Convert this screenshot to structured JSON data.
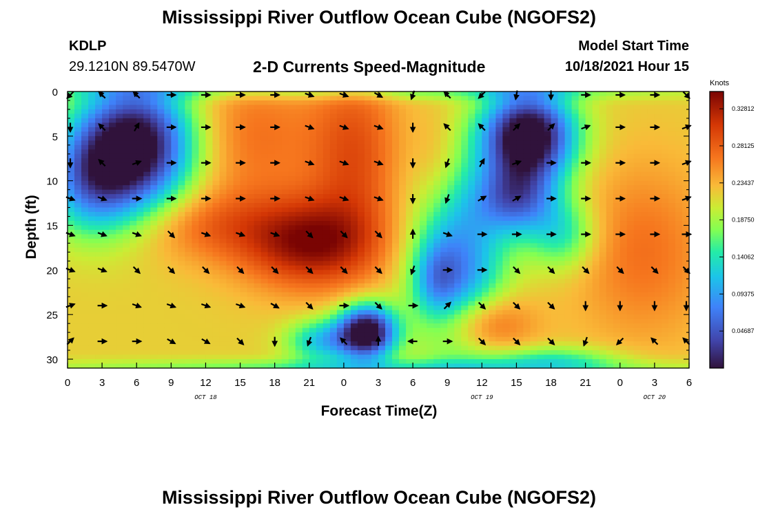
{
  "header": {
    "title": "Mississippi River Outflow Ocean Cube (NGOFS2)",
    "station": "KDLP",
    "coords": "29.1210N  89.5470W",
    "subtitle": "2-D Currents Speed-Magnitude",
    "model_start_label": "Model Start Time",
    "model_start_value": "10/18/2021 Hour 15"
  },
  "footer": {
    "title": "Mississippi River Outflow Ocean Cube (NGOFS2)"
  },
  "chart_data": {
    "type": "heatmap",
    "title": "2-D Currents Speed-Magnitude",
    "xlabel": "Forecast Time(Z)",
    "ylabel": "Depth (ft)",
    "xlim": [
      0,
      54
    ],
    "ylim": [
      0,
      31
    ],
    "x_ticks": [
      0,
      3,
      6,
      9,
      12,
      15,
      18,
      21,
      24,
      27,
      30,
      33,
      36,
      39,
      42,
      45,
      48,
      51,
      54
    ],
    "x_tick_labels": [
      "0",
      "3",
      "6",
      "9",
      "12",
      "15",
      "18",
      "21",
      "0",
      "3",
      "6",
      "9",
      "12",
      "15",
      "18",
      "21",
      "0",
      "3",
      "6"
    ],
    "y_ticks": [
      0,
      5,
      10,
      15,
      20,
      25,
      30
    ],
    "y_tick_labels": [
      "0",
      "5",
      "10",
      "15",
      "20",
      "25",
      "30"
    ],
    "date_labels": [
      {
        "x": 12,
        "text": "OCT 18"
      },
      {
        "x": 36,
        "text": "OCT 19"
      },
      {
        "x": 51,
        "text": "OCT 20"
      }
    ],
    "colorbar": {
      "label": "Knots",
      "min": 0.0,
      "max": 0.35,
      "ticks": [
        0.04687,
        0.09375,
        0.14062,
        0.1875,
        0.23437,
        0.28125,
        0.32812
      ],
      "tick_labels": [
        "0.04687",
        "0.09375",
        "0.14062",
        "0.18750",
        "0.23437",
        "0.28125",
        "0.32812"
      ]
    },
    "speed_field_features": [
      {
        "x": 6,
        "y": 6,
        "sx": 5,
        "sy": 7,
        "v": -0.24
      },
      {
        "x": 2,
        "y": 10,
        "sx": 4,
        "sy": 6,
        "v": -0.12
      },
      {
        "x": 21,
        "y": 17,
        "sx": 6,
        "sy": 5,
        "v": 0.12
      },
      {
        "x": 12,
        "y": 15,
        "sx": 6,
        "sy": 4,
        "v": 0.05
      },
      {
        "x": 16,
        "y": 5,
        "sx": 6,
        "sy": 8,
        "v": 0.05
      },
      {
        "x": 25,
        "y": 7,
        "sx": 4,
        "sy": 10,
        "v": 0.07
      },
      {
        "x": 26,
        "y": 27,
        "sx": 2.5,
        "sy": 3,
        "v": -0.25
      },
      {
        "x": 22,
        "y": 28,
        "sx": 3,
        "sy": 2.5,
        "v": -0.1
      },
      {
        "x": 34,
        "y": 20,
        "sx": 4,
        "sy": 10,
        "v": -0.14
      },
      {
        "x": 32,
        "y": 21,
        "sx": 2,
        "sy": 4,
        "v": -0.06
      },
      {
        "x": 40,
        "y": 5,
        "sx": 4,
        "sy": 5,
        "v": -0.26
      },
      {
        "x": 39,
        "y": 12,
        "sx": 3.5,
        "sy": 4,
        "v": -0.14
      },
      {
        "x": 36,
        "y": 26,
        "sx": 4,
        "sy": 3.5,
        "v": 0.09
      },
      {
        "x": 43,
        "y": 16,
        "sx": 3,
        "sy": 4,
        "v": -0.08
      },
      {
        "x": 42,
        "y": 30,
        "sx": 6,
        "sy": 1.5,
        "v": -0.07
      },
      {
        "x": 50,
        "y": 18,
        "sx": 6,
        "sy": 10,
        "v": 0.05
      },
      {
        "x": 32,
        "y": 8,
        "sx": 2,
        "sy": 6,
        "v": 0.02
      },
      {
        "x": 27,
        "y": 0,
        "sx": 30,
        "sy": 1.0,
        "v": -0.05
      },
      {
        "x": 27,
        "y": 31,
        "sx": 30,
        "sy": 1.0,
        "v": -0.06
      }
    ],
    "speed_base": 0.22,
    "wind_vectors": {
      "x": [
        0,
        3,
        6,
        9,
        12,
        15,
        18,
        21,
        24,
        27,
        30,
        33,
        36,
        39,
        42,
        45,
        48,
        51,
        54
      ],
      "depths": [
        0,
        4,
        8,
        12,
        16,
        20,
        24,
        28
      ],
      "angles_deg": [
        [
          135,
          225,
          225,
          0,
          0,
          0,
          0,
          20,
          20,
          30,
          110,
          225,
          135,
          100,
          90,
          0,
          0,
          0,
          45
        ],
        [
          90,
          225,
          300,
          0,
          0,
          0,
          0,
          20,
          20,
          20,
          90,
          225,
          225,
          315,
          315,
          340,
          0,
          0,
          340
        ],
        [
          90,
          225,
          340,
          0,
          0,
          0,
          0,
          20,
          20,
          20,
          90,
          110,
          300,
          340,
          0,
          0,
          0,
          0,
          340
        ],
        [
          20,
          20,
          0,
          0,
          0,
          0,
          0,
          20,
          20,
          20,
          90,
          110,
          330,
          330,
          0,
          0,
          0,
          0,
          340
        ],
        [
          20,
          20,
          20,
          45,
          20,
          20,
          20,
          45,
          45,
          45,
          270,
          20,
          0,
          0,
          0,
          0,
          0,
          0,
          0
        ],
        [
          20,
          20,
          45,
          45,
          45,
          45,
          45,
          45,
          45,
          45,
          110,
          0,
          0,
          45,
          45,
          45,
          45,
          45,
          45
        ],
        [
          340,
          0,
          20,
          20,
          20,
          20,
          30,
          45,
          0,
          45,
          0,
          315,
          45,
          45,
          45,
          90,
          90,
          90,
          90
        ],
        [
          315,
          0,
          0,
          30,
          30,
          45,
          90,
          110,
          225,
          270,
          180,
          0,
          45,
          45,
          45,
          110,
          135,
          225,
          225
        ]
      ]
    }
  }
}
